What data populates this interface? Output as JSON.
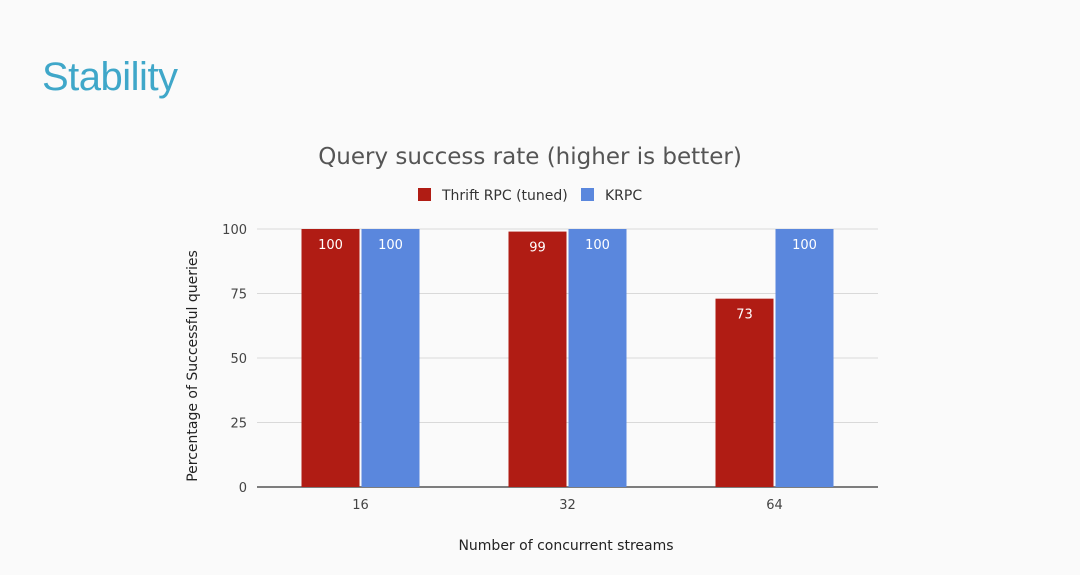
{
  "slide": {
    "title": "Stability"
  },
  "colors": {
    "title": "#3fa7c9",
    "series": [
      "#b01c14",
      "#5a87dd"
    ]
  },
  "chart_data": {
    "type": "bar",
    "title": "Query success rate (higher is better)",
    "xlabel": "Number of concurrent streams",
    "ylabel": "Percentage of Successful queries",
    "categories": [
      "16",
      "32",
      "64"
    ],
    "series": [
      {
        "name": "Thrift RPC (tuned)",
        "values": [
          100,
          99,
          73
        ]
      },
      {
        "name": "KRPC",
        "values": [
          100,
          100,
          100
        ]
      }
    ],
    "ylim": [
      0,
      100
    ],
    "yticks": [
      0,
      25,
      50,
      75,
      100
    ],
    "grid": true,
    "legend_position": "top",
    "data_labels": true
  }
}
